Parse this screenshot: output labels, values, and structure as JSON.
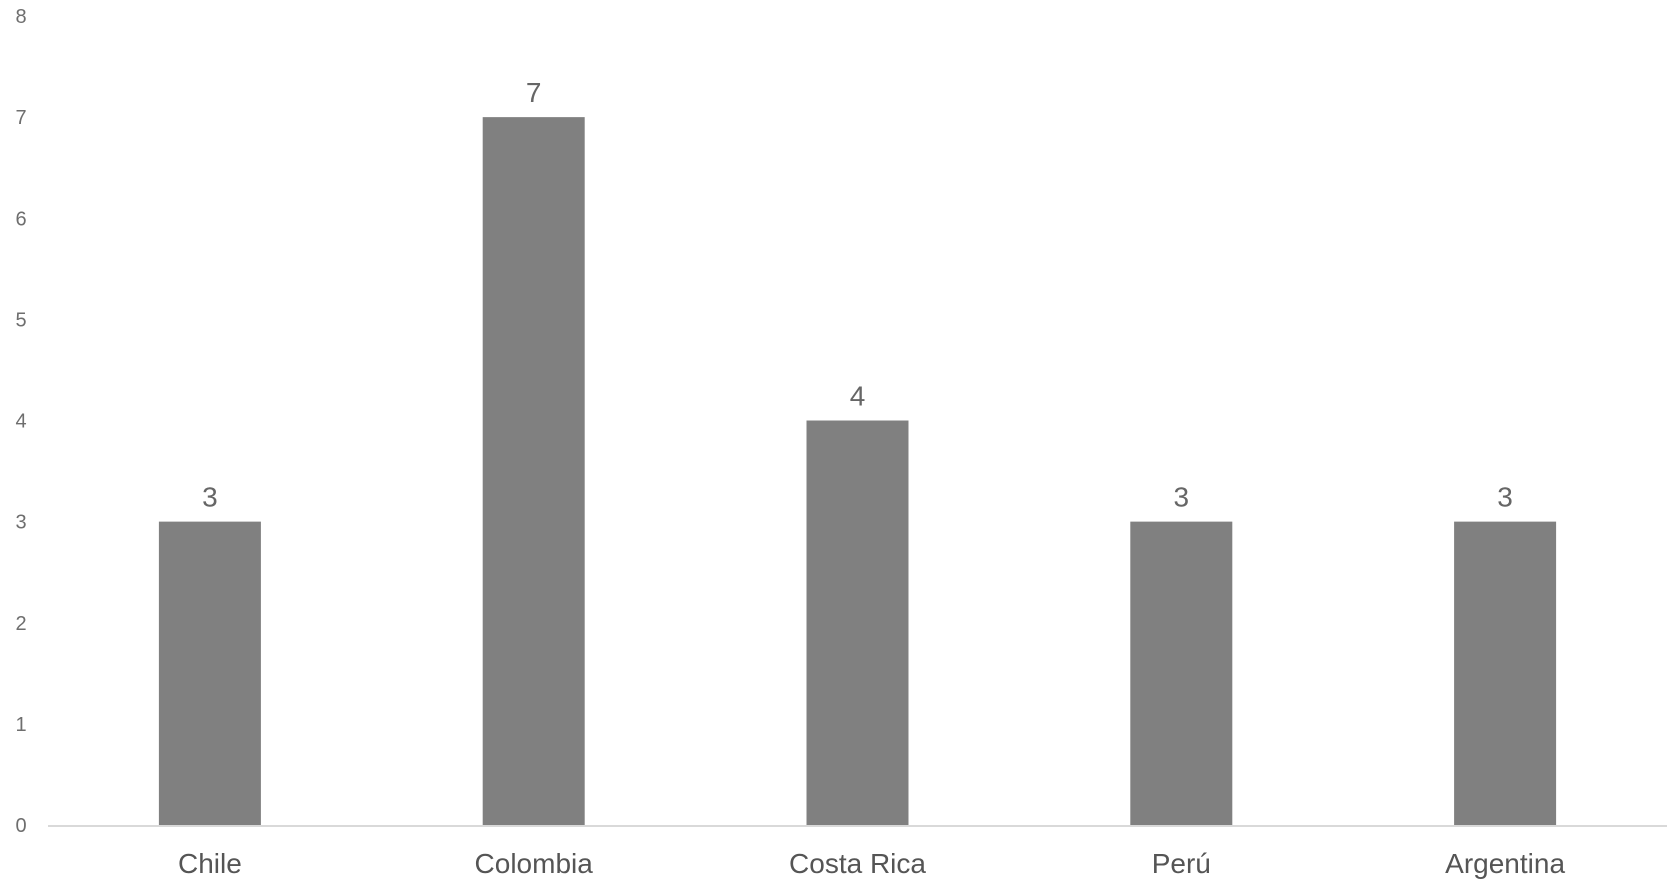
{
  "chart_data": {
    "type": "bar",
    "categories": [
      "Chile",
      "Colombia",
      "Costa Rica",
      "Perú",
      "Argentina"
    ],
    "values": [
      3,
      7,
      4,
      3,
      3
    ],
    "data_labels": [
      "3",
      "7",
      "4",
      "3",
      "3"
    ],
    "ylim": [
      0,
      8
    ],
    "yticks": [
      "0",
      "1",
      "2",
      "3",
      "4",
      "5",
      "6",
      "7",
      "8"
    ],
    "grid": false,
    "legend": "none",
    "title": "",
    "xlabel": "",
    "ylabel": "",
    "bar_color": "#808080",
    "axis_color": "#d9d9d9"
  }
}
